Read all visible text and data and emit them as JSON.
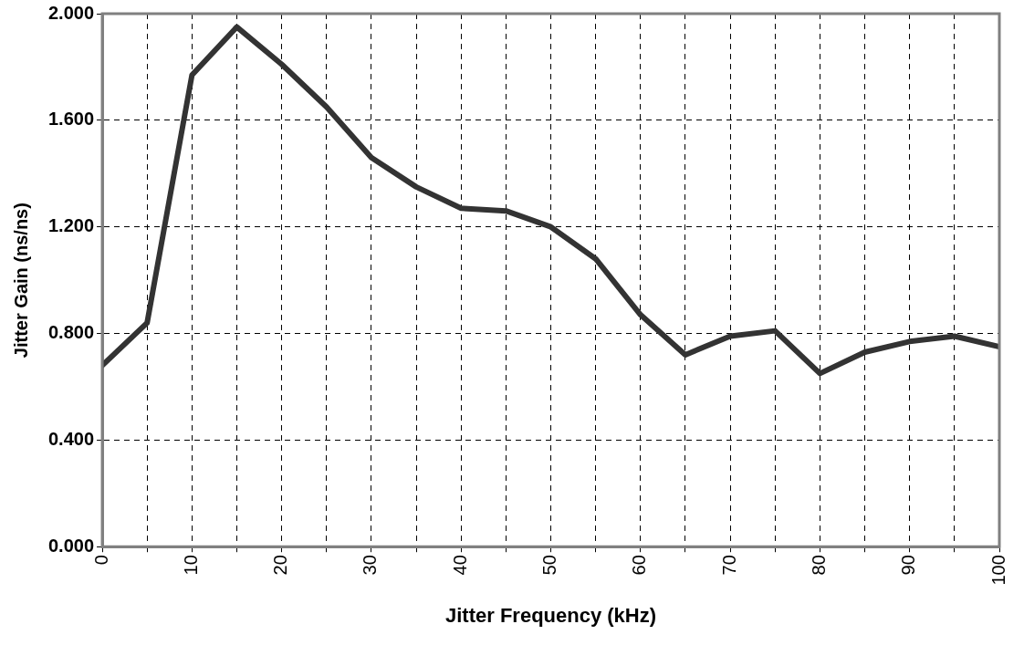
{
  "chart_data": {
    "type": "line",
    "xlabel": "Jitter Frequency (kHz)",
    "ylabel": "Jitter Gain (ns/ns)",
    "x": [
      0,
      5,
      10,
      15,
      20,
      25,
      30,
      35,
      40,
      45,
      50,
      55,
      60,
      65,
      70,
      75,
      80,
      85,
      90,
      95,
      100
    ],
    "series": [
      {
        "color": "#333333",
        "values": [
          0.68,
          0.84,
          1.77,
          1.95,
          1.81,
          1.65,
          1.46,
          1.35,
          1.27,
          1.26,
          1.2,
          1.08,
          0.87,
          0.72,
          0.79,
          0.81,
          0.65,
          0.73,
          0.77,
          0.79,
          0.75
        ]
      }
    ],
    "xlim": [
      0,
      100
    ],
    "xticks": [
      0,
      {
        "value": 5,
        "label": null
      },
      10,
      {
        "value": 15,
        "label": null
      },
      20,
      {
        "value": 25,
        "label": null
      },
      30,
      {
        "value": 35,
        "label": null
      },
      40,
      {
        "value": 45,
        "label": null
      },
      50,
      {
        "value": 55,
        "label": null
      },
      60,
      {
        "value": 65,
        "label": null
      },
      70,
      {
        "value": 75,
        "label": null
      },
      80,
      {
        "value": 85,
        "label": null
      },
      90,
      {
        "value": 95,
        "label": null
      },
      100
    ],
    "ylim": [
      0,
      2
    ],
    "yticks": [
      {
        "value": 0,
        "label": "0.000"
      },
      {
        "value": 0.4,
        "label": "0.400"
      },
      {
        "value": 0.8,
        "label": "0.800"
      },
      {
        "value": 1.2,
        "label": "1.200"
      },
      {
        "value": 1.6,
        "label": "1.600"
      },
      {
        "value": 2,
        "label": "2.000"
      }
    ],
    "grid": true,
    "legend": false,
    "marker": "none",
    "line_style": "solid"
  }
}
